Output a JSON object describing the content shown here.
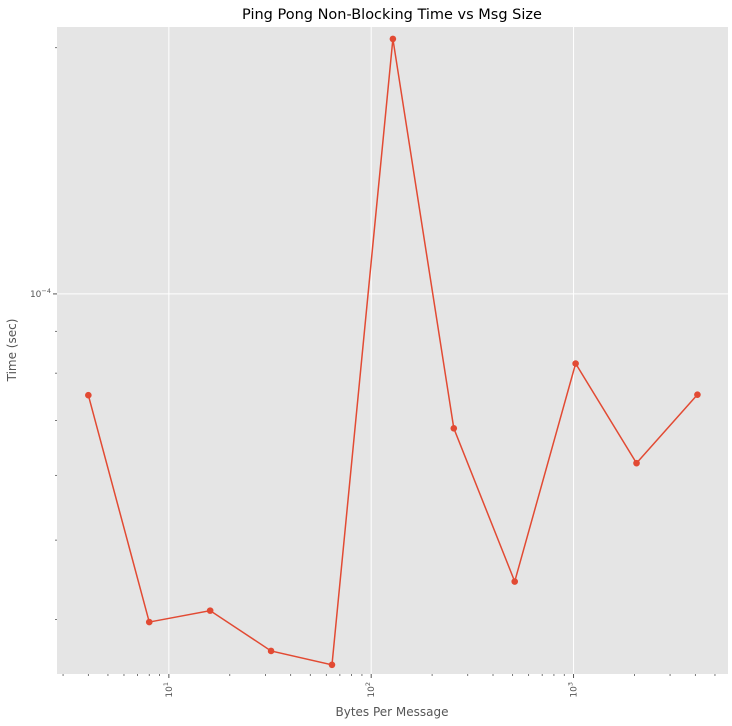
{
  "chart_data": {
    "type": "line",
    "title": "Ping Pong Non-Blocking Time vs Msg Size",
    "xlabel": "Bytes Per Message",
    "ylabel": "Time (sec)",
    "xscale": "log",
    "yscale": "log",
    "xlim": [
      2.8,
      5800
    ],
    "ylim": [
      3.43e-05,
      0.000212
    ],
    "grid": true,
    "colors": {
      "line": "#E24A33",
      "plot_bg": "#E5E5E5",
      "grid": "#FFFFFF"
    },
    "x_major_ticks": [
      {
        "value": 10,
        "base": "10",
        "exp": "1"
      },
      {
        "value": 100,
        "base": "10",
        "exp": "2"
      },
      {
        "value": 1000,
        "base": "10",
        "exp": "3"
      }
    ],
    "y_major_ticks": [
      {
        "value": 0.0001,
        "base": "10",
        "exp": "−4"
      }
    ],
    "x_minor_ticks": [
      3,
      4,
      5,
      6,
      7,
      8,
      9,
      20,
      30,
      40,
      50,
      60,
      70,
      80,
      90,
      200,
      300,
      400,
      500,
      600,
      700,
      800,
      900,
      2000,
      3000,
      4000,
      5000
    ],
    "y_minor_ticks": [
      4e-05,
      5e-05,
      6e-05,
      7e-05,
      8e-05,
      9e-05,
      0.0002
    ],
    "series": [
      {
        "x": [
          4,
          8,
          16,
          32,
          64,
          128,
          256,
          512,
          1024,
          2048,
          4096
        ],
        "y": [
          7.52e-05,
          3.97e-05,
          4.1e-05,
          3.66e-05,
          3.52e-05,
          0.000205,
          6.85e-05,
          4.45e-05,
          8.22e-05,
          6.21e-05,
          7.53e-05
        ]
      }
    ]
  }
}
